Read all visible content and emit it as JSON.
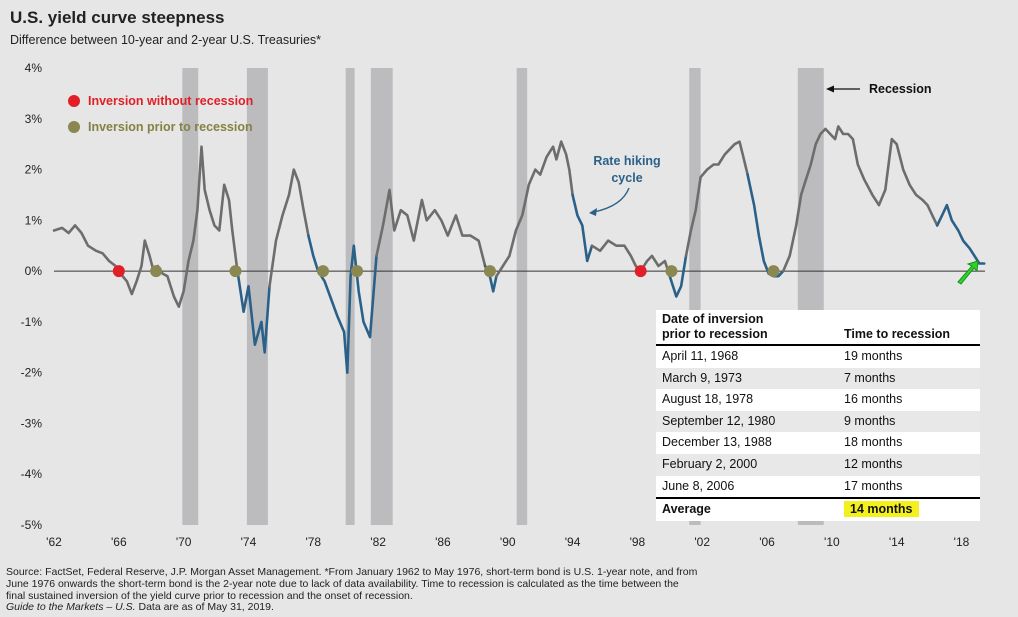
{
  "title": "U.S. yield curve steepness",
  "subtitle": "Difference between 10-year and 2-year U.S. Treasuries*",
  "colors": {
    "background": "#e6e6e6",
    "line_gray": "#6d6d6d",
    "line_blue": "#2b6189",
    "recession_band": "#bcbcbe",
    "inversion_without_recession": "#e11f26",
    "inversion_prior_to_recession": "#8a8850",
    "legend_red_text": "#e11f26",
    "legend_olive_text": "#848243",
    "highlight": "#f3f01e",
    "arrow_green": "#2bd62b"
  },
  "annotations": {
    "recession_label": "Recession",
    "rate_hiking_label": [
      "Rate hiking",
      "cycle"
    ]
  },
  "chart_data": {
    "type": "line",
    "xlim": [
      1962,
      2019.45
    ],
    "ylim": [
      -5,
      4
    ],
    "x_tick_labels": [
      "'62",
      "'66",
      "'70",
      "'74",
      "'78",
      "'82",
      "'86",
      "'90",
      "'94",
      "'98",
      "'02",
      "'06",
      "'10",
      "'14",
      "'18"
    ],
    "x_tick_values": [
      1962,
      1966,
      1970,
      1974,
      1978,
      1982,
      1986,
      1990,
      1994,
      1998,
      2002,
      2006,
      2010,
      2014,
      2018
    ],
    "y_ticks": [
      -5,
      -4,
      -3,
      -2,
      -1,
      0,
      1,
      2,
      3,
      4
    ],
    "y_tick_labels": [
      "-5%",
      "-4%",
      "-3%",
      "-2%",
      "-1%",
      "0%",
      "1%",
      "2%",
      "3%",
      "4%"
    ],
    "grid": false,
    "recessions": [
      [
        1969.92,
        1970.9
      ],
      [
        1973.9,
        1975.2
      ],
      [
        1980.0,
        1980.55
      ],
      [
        1981.55,
        1982.9
      ],
      [
        1990.55,
        1991.2
      ],
      [
        2001.2,
        2001.9
      ],
      [
        2007.9,
        2009.5
      ]
    ],
    "legend": [
      {
        "label": "Inversion without recession",
        "color": "#e11f26"
      },
      {
        "label": "Inversion prior to recession",
        "color": "#8a8850"
      }
    ],
    "inversion_without_recession": [
      1966.0,
      1998.2
    ],
    "inversion_prior_to_recession": [
      1968.3,
      1973.2,
      1978.6,
      1980.7,
      1988.9,
      2000.1,
      2006.4
    ],
    "series": [
      {
        "points": [
          [
            1962.0,
            0.8
          ],
          [
            1962.5,
            0.85
          ],
          [
            1962.9,
            0.75
          ],
          [
            1963.3,
            0.9
          ],
          [
            1963.7,
            0.75
          ],
          [
            1964.1,
            0.5
          ],
          [
            1964.6,
            0.4
          ],
          [
            1965.0,
            0.35
          ],
          [
            1965.4,
            0.2
          ],
          [
            1965.8,
            0.1
          ],
          [
            1966.1,
            -0.05
          ],
          [
            1966.5,
            -0.2
          ],
          [
            1966.8,
            -0.45
          ],
          [
            1967.1,
            -0.2
          ],
          [
            1967.4,
            0.1
          ],
          [
            1967.6,
            0.6
          ],
          [
            1967.9,
            0.3
          ],
          [
            1968.1,
            0.05
          ],
          [
            1968.4,
            0.1
          ],
          [
            1968.7,
            -0.05
          ],
          [
            1969.0,
            -0.1
          ],
          [
            1969.4,
            -0.5
          ],
          [
            1969.7,
            -0.7
          ],
          [
            1970.0,
            -0.4
          ],
          [
            1970.3,
            0.2
          ],
          [
            1970.6,
            0.6
          ],
          [
            1970.85,
            1.2
          ],
          [
            1971.1,
            2.45
          ],
          [
            1971.3,
            1.6
          ],
          [
            1971.6,
            1.2
          ],
          [
            1971.9,
            0.9
          ],
          [
            1972.2,
            0.8
          ],
          [
            1972.5,
            1.7
          ],
          [
            1972.8,
            1.4
          ],
          [
            1973.0,
            0.8
          ],
          [
            1973.3,
            0.05
          ]
        ],
        "color": "gray"
      },
      {
        "points": [
          [
            1973.3,
            0.05
          ],
          [
            1973.7,
            -0.8
          ],
          [
            1974.0,
            -0.3
          ],
          [
            1974.4,
            -1.45
          ],
          [
            1974.8,
            -1.0
          ],
          [
            1975.0,
            -1.6
          ],
          [
            1975.3,
            -0.3
          ]
        ],
        "color": "blue"
      },
      {
        "points": [
          [
            1975.3,
            -0.3
          ],
          [
            1975.7,
            0.6
          ],
          [
            1976.1,
            1.1
          ],
          [
            1976.5,
            1.5
          ],
          [
            1976.8,
            2.0
          ],
          [
            1977.1,
            1.75
          ],
          [
            1977.4,
            1.2
          ],
          [
            1977.7,
            0.7
          ]
        ],
        "color": "gray"
      },
      {
        "points": [
          [
            1977.7,
            0.7
          ],
          [
            1978.0,
            0.3
          ],
          [
            1978.3,
            0.0
          ],
          [
            1978.7,
            -0.2
          ],
          [
            1979.1,
            -0.55
          ],
          [
            1979.5,
            -0.9
          ],
          [
            1979.9,
            -1.2
          ],
          [
            1980.1,
            -2.0
          ],
          [
            1980.3,
            -0.1
          ],
          [
            1980.5,
            0.5
          ],
          [
            1980.8,
            -0.4
          ],
          [
            1981.1,
            -1.0
          ],
          [
            1981.5,
            -1.3
          ],
          [
            1981.9,
            0.3
          ]
        ],
        "color": "blue"
      },
      {
        "points": [
          [
            1981.9,
            0.3
          ],
          [
            1982.3,
            0.9
          ],
          [
            1982.7,
            1.6
          ],
          [
            1983.0,
            0.8
          ],
          [
            1983.4,
            1.2
          ],
          [
            1983.8,
            1.1
          ],
          [
            1984.2,
            0.6
          ],
          [
            1984.7,
            1.4
          ],
          [
            1985.0,
            1.0
          ],
          [
            1985.5,
            1.2
          ],
          [
            1985.9,
            1.0
          ],
          [
            1986.3,
            0.7
          ],
          [
            1986.8,
            1.1
          ],
          [
            1987.2,
            0.7
          ],
          [
            1987.7,
            0.7
          ],
          [
            1988.2,
            0.6
          ],
          [
            1988.6,
            0.1
          ]
        ],
        "color": "gray"
      },
      {
        "points": [
          [
            1988.6,
            0.1
          ],
          [
            1988.9,
            -0.1
          ],
          [
            1989.1,
            -0.4
          ],
          [
            1989.3,
            -0.1
          ]
        ],
        "color": "blue"
      },
      {
        "points": [
          [
            1989.3,
            -0.1
          ],
          [
            1989.7,
            0.1
          ],
          [
            1990.1,
            0.3
          ],
          [
            1990.5,
            0.8
          ],
          [
            1990.9,
            1.1
          ],
          [
            1991.3,
            1.7
          ],
          [
            1991.7,
            2.0
          ],
          [
            1992.0,
            1.9
          ],
          [
            1992.4,
            2.25
          ],
          [
            1992.8,
            2.45
          ],
          [
            1993.0,
            2.2
          ],
          [
            1993.3,
            2.55
          ],
          [
            1993.6,
            2.3
          ],
          [
            1993.8,
            2.0
          ],
          [
            1994.0,
            1.5
          ]
        ],
        "color": "gray"
      },
      {
        "points": [
          [
            1994.0,
            1.5
          ],
          [
            1994.3,
            1.1
          ],
          [
            1994.6,
            0.9
          ],
          [
            1994.9,
            0.2
          ],
          [
            1995.2,
            0.5
          ]
        ],
        "color": "blue"
      },
      {
        "points": [
          [
            1995.2,
            0.5
          ],
          [
            1995.7,
            0.4
          ],
          [
            1996.2,
            0.6
          ],
          [
            1996.7,
            0.5
          ],
          [
            1997.2,
            0.5
          ],
          [
            1997.6,
            0.3
          ],
          [
            1997.9,
            0.1
          ],
          [
            1998.2,
            0.0
          ],
          [
            1998.6,
            0.2
          ],
          [
            1998.9,
            0.3
          ],
          [
            1999.3,
            0.1
          ],
          [
            1999.7,
            0.2
          ],
          [
            1999.9,
            0.0
          ]
        ],
        "color": "gray"
      },
      {
        "points": [
          [
            1999.9,
            0.0
          ],
          [
            2000.1,
            -0.2
          ],
          [
            2000.4,
            -0.5
          ],
          [
            2000.7,
            -0.3
          ],
          [
            2001.0,
            0.3
          ]
        ],
        "color": "blue"
      },
      {
        "points": [
          [
            2001.0,
            0.3
          ],
          [
            2001.3,
            0.8
          ],
          [
            2001.6,
            1.2
          ],
          [
            2001.9,
            1.85
          ],
          [
            2002.3,
            2.0
          ],
          [
            2002.7,
            2.1
          ],
          [
            2003.0,
            2.1
          ],
          [
            2003.4,
            2.3
          ],
          [
            2003.7,
            2.4
          ],
          [
            2004.0,
            2.5
          ],
          [
            2004.3,
            2.55
          ],
          [
            2004.5,
            2.3
          ],
          [
            2004.8,
            1.9
          ]
        ],
        "color": "gray"
      },
      {
        "points": [
          [
            2004.8,
            1.9
          ],
          [
            2005.2,
            1.3
          ],
          [
            2005.5,
            0.7
          ],
          [
            2005.8,
            0.2
          ],
          [
            2006.1,
            -0.05
          ],
          [
            2006.4,
            -0.1
          ],
          [
            2006.7,
            -0.1
          ],
          [
            2007.0,
            0.0
          ]
        ],
        "color": "blue"
      },
      {
        "points": [
          [
            2007.0,
            0.0
          ],
          [
            2007.4,
            0.3
          ],
          [
            2007.8,
            0.9
          ],
          [
            2008.1,
            1.5
          ],
          [
            2008.4,
            1.8
          ],
          [
            2008.7,
            2.1
          ],
          [
            2009.0,
            2.5
          ],
          [
            2009.3,
            2.7
          ],
          [
            2009.6,
            2.8
          ],
          [
            2009.9,
            2.7
          ],
          [
            2010.2,
            2.6
          ],
          [
            2010.4,
            2.85
          ],
          [
            2010.7,
            2.7
          ],
          [
            2011.0,
            2.7
          ],
          [
            2011.3,
            2.6
          ],
          [
            2011.6,
            2.1
          ],
          [
            2012.0,
            1.8
          ],
          [
            2012.5,
            1.5
          ],
          [
            2012.9,
            1.3
          ],
          [
            2013.3,
            1.6
          ],
          [
            2013.7,
            2.6
          ],
          [
            2014.0,
            2.5
          ],
          [
            2014.4,
            2.0
          ],
          [
            2014.8,
            1.7
          ],
          [
            2015.2,
            1.5
          ],
          [
            2015.6,
            1.4
          ],
          [
            2015.9,
            1.3
          ],
          [
            2016.2,
            1.1
          ],
          [
            2016.5,
            0.9
          ]
        ],
        "color": "gray"
      },
      {
        "points": [
          [
            2016.5,
            0.9
          ],
          [
            2016.8,
            1.1
          ],
          [
            2017.1,
            1.3
          ],
          [
            2017.4,
            1.0
          ],
          [
            2017.8,
            0.8
          ],
          [
            2018.1,
            0.6
          ],
          [
            2018.5,
            0.45
          ],
          [
            2018.9,
            0.25
          ],
          [
            2019.1,
            0.15
          ],
          [
            2019.4,
            0.15
          ]
        ],
        "color": "blue"
      }
    ]
  },
  "table": {
    "header": {
      "col1_line1": "Date of inversion",
      "col1_line2": "prior to recession",
      "col2": "Time to recession"
    },
    "rows": [
      {
        "date": "April 11, 1968",
        "time": "19 months"
      },
      {
        "date": "March 9, 1973",
        "time": "7 months"
      },
      {
        "date": "August 18, 1978",
        "time": "16 months"
      },
      {
        "date": "September 12, 1980",
        "time": "9 months"
      },
      {
        "date": "December 13, 1988",
        "time": "18 months"
      },
      {
        "date": "February 2, 2000",
        "time": "12 months"
      },
      {
        "date": "June 8, 2006",
        "time": "17 months"
      }
    ],
    "average": {
      "label": "Average",
      "value": "14 months"
    }
  },
  "footnote": {
    "line1": "Source: FactSet, Federal Reserve, J.P. Morgan Asset Management. *From January 1962 to May 1976, short-term bond is U.S. 1-year note, and from",
    "line2": "June 1976 onwards the short-term bond is the 2-year note due to lack of data availability. Time to recession is calculated as the time between the",
    "line3": "final sustained inversion of the yield curve prior to recession and the onset of recession.",
    "line4_italic": "Guide to the Markets – U.S.",
    "line4_rest": " Data are as of May 31, 2019."
  }
}
